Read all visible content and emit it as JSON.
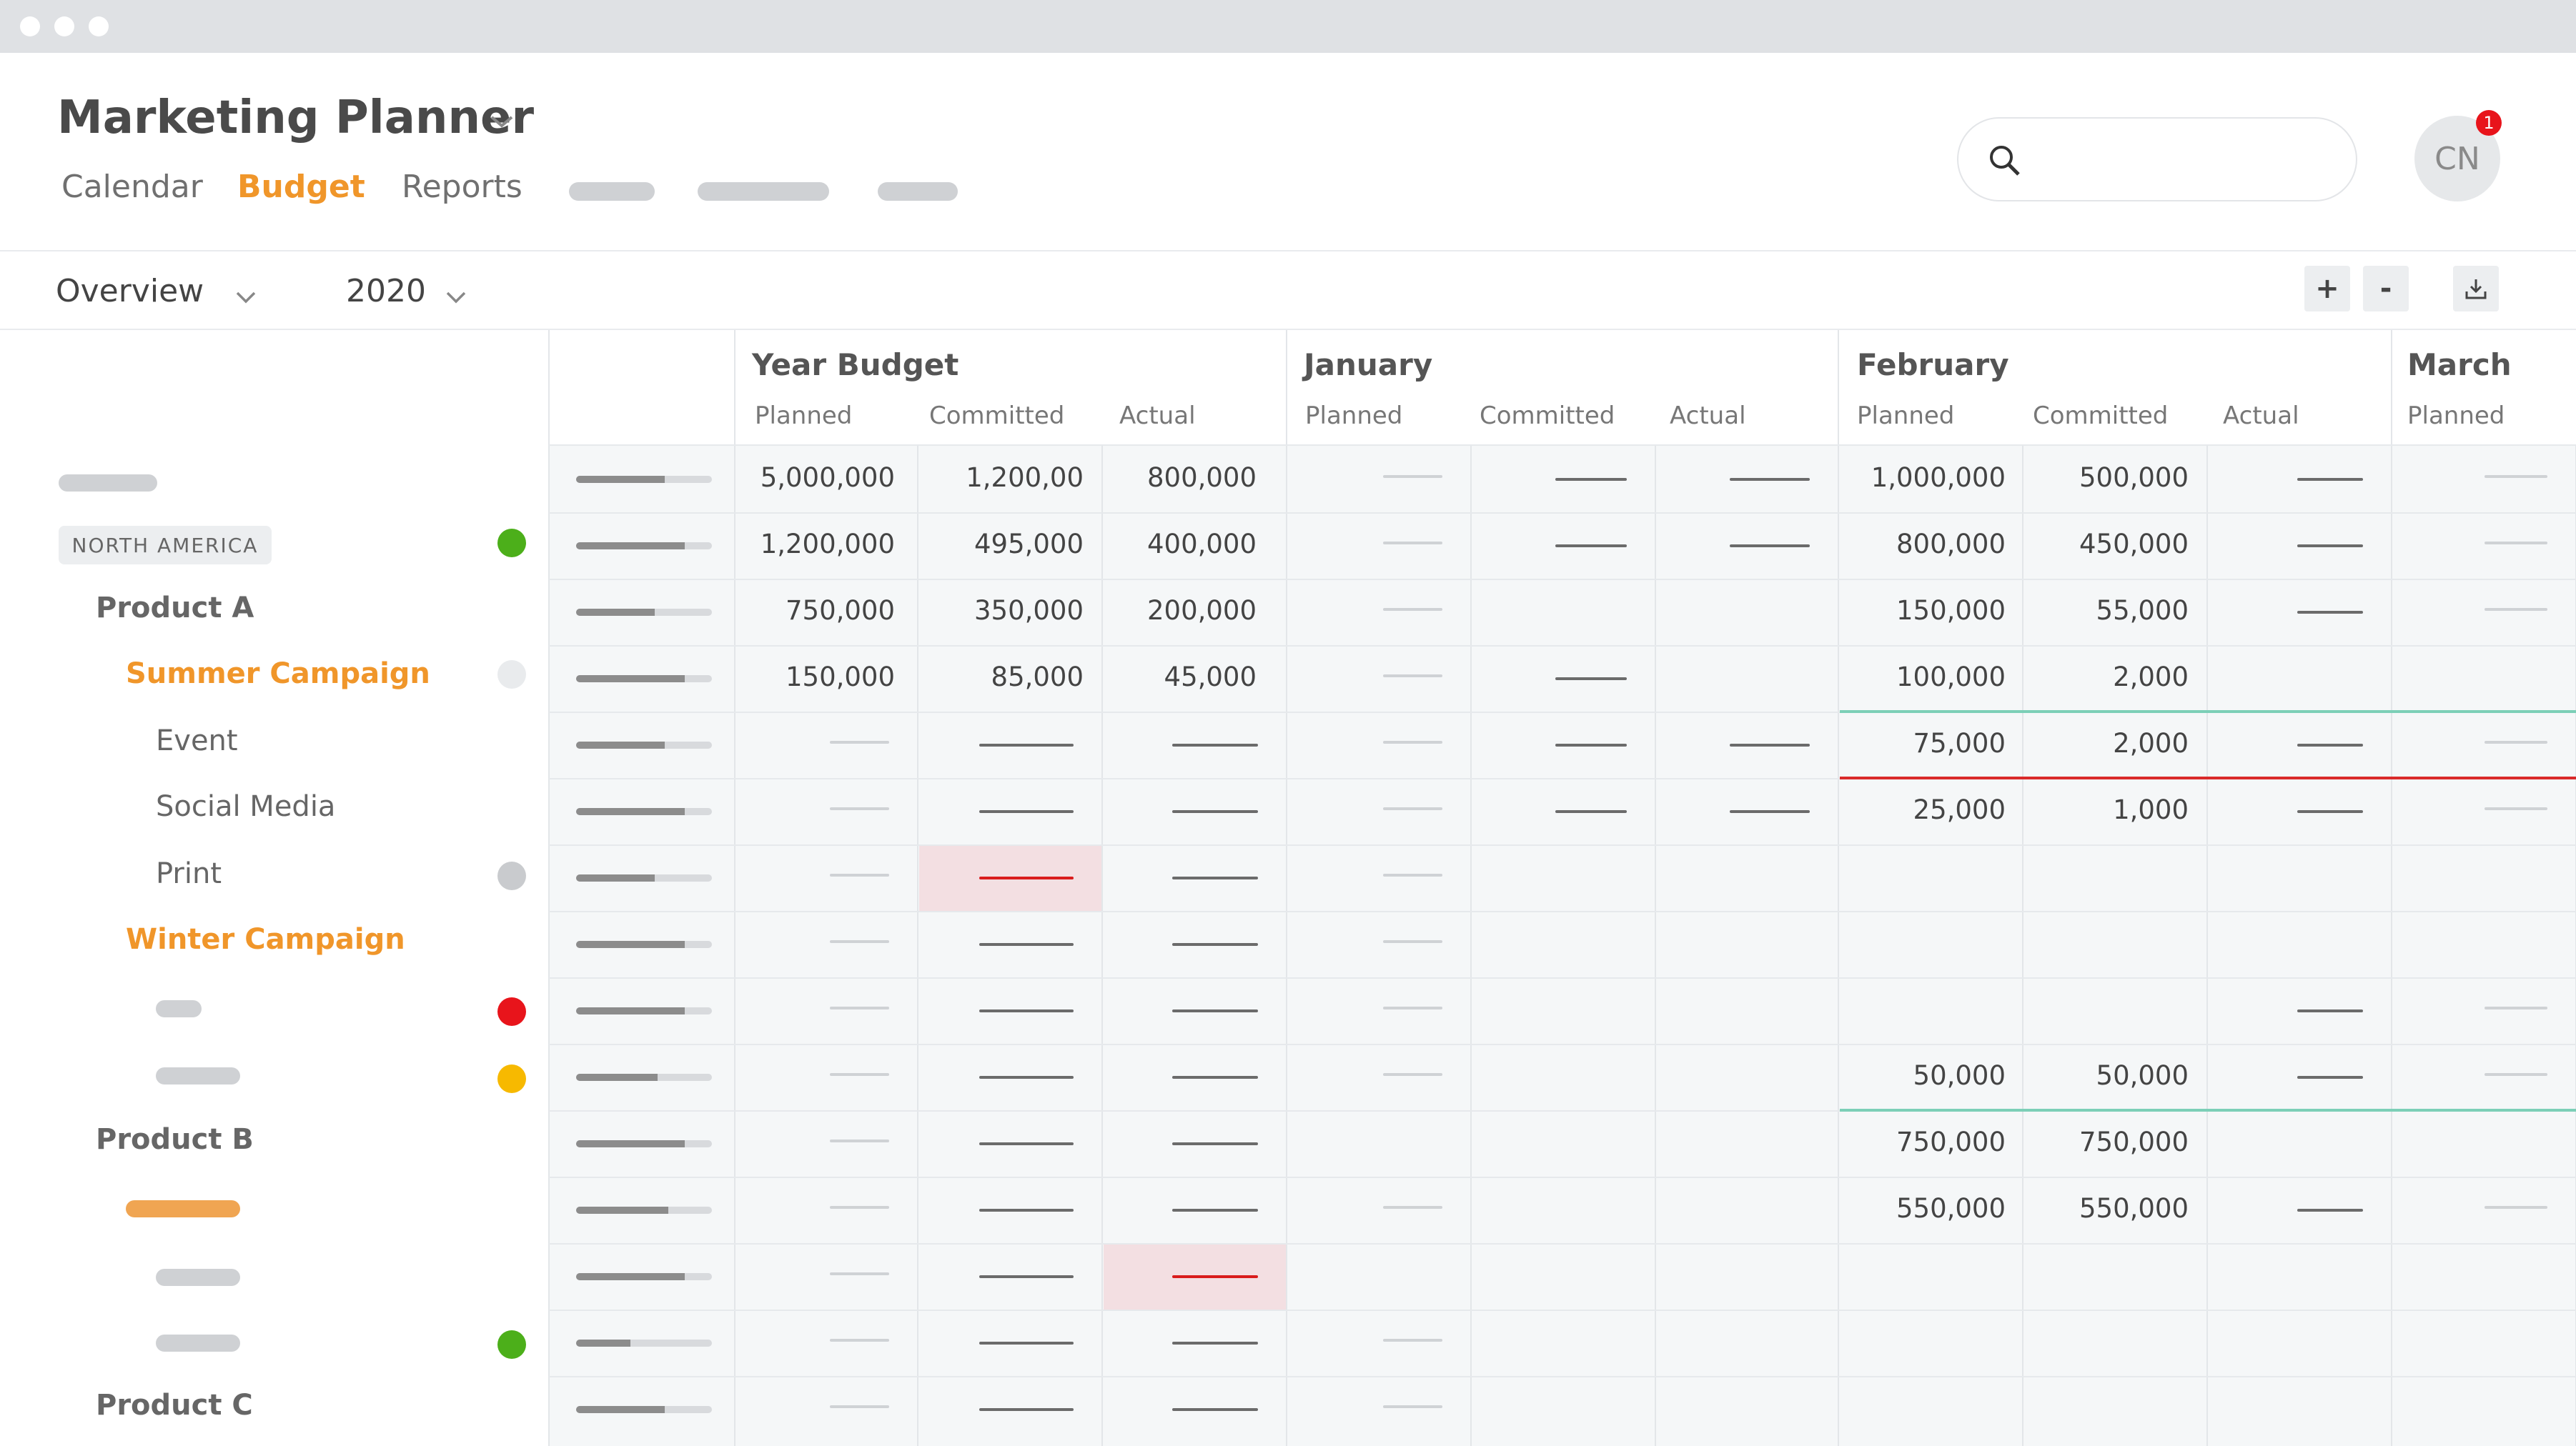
{
  "window": {
    "dots": 3
  },
  "app": {
    "title": "Marketing Planner"
  },
  "nav": {
    "tabs": [
      {
        "label": "Calendar"
      },
      {
        "label": "Budget",
        "active": true
      },
      {
        "label": "Reports"
      }
    ]
  },
  "user": {
    "initials": "CN",
    "notifications": "1"
  },
  "toolbar": {
    "view": "Overview",
    "year": "2020",
    "zoom_in": "+",
    "zoom_out": "-"
  },
  "columns": {
    "groups": [
      "Year Budget",
      "January",
      "February",
      "March"
    ],
    "sub": {
      "planned": "Planned",
      "committed": "Committed",
      "actual": "Actual"
    }
  },
  "sidebar": {
    "region": "NORTH AMERICA",
    "product_a": "Product A",
    "summer": "Summer Campaign",
    "event": "Event",
    "social": "Social Media",
    "print": "Print",
    "winter": "Winter Campaign",
    "product_b": "Product B",
    "product_c": "Product C",
    "status_colors": {
      "green": "#4caf1a",
      "red": "#e8141b",
      "yellow": "#f7b900",
      "grey": "#c9cbce",
      "light": "#e9ebed"
    }
  },
  "rows": [
    {
      "yb": [
        "5,000,000",
        "1,200,00",
        "800,000"
      ],
      "feb": [
        "1,000,000",
        "500,000"
      ],
      "progress": 0.65
    },
    {
      "yb": [
        "1,200,000",
        "495,000",
        "400,000"
      ],
      "feb": [
        "800,000",
        "450,000"
      ],
      "progress": 0.8
    },
    {
      "yb": [
        "750,000",
        "350,000",
        "200,000"
      ],
      "feb": [
        "150,000",
        "55,000"
      ],
      "progress": 0.58
    },
    {
      "yb": [
        "150,000",
        "85,000",
        "45,000"
      ],
      "feb": [
        "100,000",
        "2,000"
      ],
      "progress": 0.8
    },
    {
      "yb": [
        "",
        "",
        ""
      ],
      "feb": [
        "75,000",
        "2,000"
      ],
      "progress": 0.65
    },
    {
      "yb": [
        "",
        "",
        ""
      ],
      "feb": [
        "25,000",
        "1,000"
      ],
      "progress": 0.8
    },
    {
      "yb": [
        "",
        "",
        ""
      ],
      "feb": [
        "",
        ""
      ],
      "progress": 0.58
    },
    {
      "yb": [
        "",
        "",
        ""
      ],
      "feb": [
        "",
        ""
      ],
      "progress": 0.8
    },
    {
      "yb": [
        "",
        "",
        ""
      ],
      "feb": [
        "",
        ""
      ],
      "progress": 0.8
    },
    {
      "yb": [
        "",
        "",
        ""
      ],
      "feb": [
        "50,000",
        "50,000"
      ],
      "progress": 0.6
    },
    {
      "yb": [
        "",
        "",
        ""
      ],
      "feb": [
        "750,000",
        "750,000"
      ],
      "progress": 0.8
    },
    {
      "yb": [
        "",
        "",
        ""
      ],
      "feb": [
        "550,000",
        "550,000"
      ],
      "progress": 0.68
    },
    {
      "yb": [
        "",
        "",
        ""
      ],
      "feb": [
        "",
        ""
      ],
      "progress": 0.8
    },
    {
      "yb": [
        "",
        "",
        ""
      ],
      "feb": [
        "",
        ""
      ],
      "progress": 0.4
    },
    {
      "yb": [
        "",
        "",
        ""
      ],
      "feb": [
        "",
        ""
      ],
      "progress": 0.65
    }
  ]
}
